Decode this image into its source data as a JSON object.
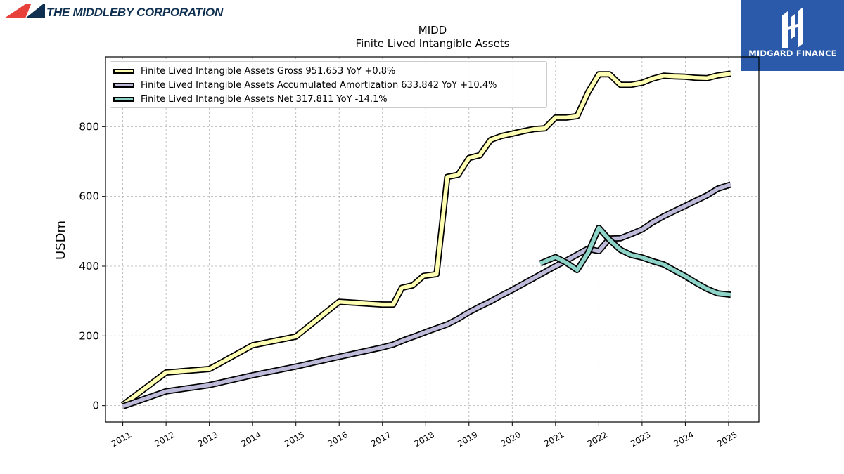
{
  "header": {
    "company_name": "THE MIDDLEBY CORPORATION",
    "brand_name": "MIDGARD FINANCE"
  },
  "colors": {
    "gross": "#ffffb3",
    "amortization": "#bebada",
    "net": "#8dd3c7",
    "outline": "#000000",
    "grid": "#b0b0b0",
    "brand_box": "#2a5aa9",
    "logo_red": "#e8403a",
    "logo_navy": "#0e2f4f"
  },
  "chart_data": {
    "type": "line",
    "title": "MIDD",
    "subtitle": "Finite Lived Intangible Assets",
    "ylabel": "USDm",
    "xlabel": "",
    "xlim": [
      2010.6,
      2025.7
    ],
    "ylim": [
      -47,
      1000
    ],
    "yticks": [
      0,
      200,
      400,
      600,
      800
    ],
    "xticks": [
      "2011",
      "2012",
      "2013",
      "2014",
      "2015",
      "2016",
      "2017",
      "2018",
      "2019",
      "2020",
      "2021",
      "2022",
      "2023",
      "2024",
      "2025"
    ],
    "grid": true,
    "legend_position": "top-left",
    "series": [
      {
        "name": "Finite Lived Intangible Assets Gross",
        "value_label": "951.653",
        "yoy_label": "YoY +0.8%",
        "color_key": "gross",
        "points": [
          [
            2011.0,
            2
          ],
          [
            2012.0,
            95
          ],
          [
            2013.0,
            105
          ],
          [
            2014.0,
            173
          ],
          [
            2015.0,
            198
          ],
          [
            2016.0,
            298
          ],
          [
            2017.0,
            290
          ],
          [
            2017.25,
            290
          ],
          [
            2017.45,
            338
          ],
          [
            2017.7,
            345
          ],
          [
            2017.95,
            372
          ],
          [
            2018.25,
            377
          ],
          [
            2018.5,
            656
          ],
          [
            2018.75,
            662
          ],
          [
            2019.0,
            710
          ],
          [
            2019.25,
            718
          ],
          [
            2019.5,
            762
          ],
          [
            2019.75,
            773
          ],
          [
            2020.0,
            780
          ],
          [
            2020.25,
            787
          ],
          [
            2020.5,
            793
          ],
          [
            2020.75,
            795
          ],
          [
            2021.0,
            826
          ],
          [
            2021.25,
            826
          ],
          [
            2021.5,
            830
          ],
          [
            2021.75,
            898
          ],
          [
            2022.0,
            950
          ],
          [
            2022.25,
            950
          ],
          [
            2022.5,
            920
          ],
          [
            2022.75,
            920
          ],
          [
            2023.0,
            926
          ],
          [
            2023.25,
            938
          ],
          [
            2023.5,
            946
          ],
          [
            2023.75,
            944
          ],
          [
            2024.0,
            943
          ],
          [
            2024.25,
            940
          ],
          [
            2024.5,
            939
          ],
          [
            2024.75,
            947
          ],
          [
            2025.05,
            952
          ]
        ]
      },
      {
        "name": "Finite Lived Intangible Assets Accumulated Amortization",
        "value_label": "633.842",
        "yoy_label": "YoY +10.4%",
        "color_key": "amortization",
        "points": [
          [
            2011.0,
            -2
          ],
          [
            2012.0,
            41
          ],
          [
            2013.0,
            59
          ],
          [
            2014.0,
            87
          ],
          [
            2015.0,
            112
          ],
          [
            2016.0,
            140
          ],
          [
            2017.0,
            167
          ],
          [
            2017.25,
            175
          ],
          [
            2017.5,
            188
          ],
          [
            2017.75,
            199
          ],
          [
            2018.0,
            211
          ],
          [
            2018.25,
            222
          ],
          [
            2018.5,
            233
          ],
          [
            2018.75,
            249
          ],
          [
            2019.0,
            268
          ],
          [
            2019.25,
            284
          ],
          [
            2019.5,
            299
          ],
          [
            2019.75,
            316
          ],
          [
            2020.0,
            332
          ],
          [
            2020.25,
            349
          ],
          [
            2020.5,
            366
          ],
          [
            2020.75,
            383
          ],
          [
            2021.0,
            400
          ],
          [
            2021.25,
            416
          ],
          [
            2021.5,
            433
          ],
          [
            2021.75,
            450
          ],
          [
            2022.0,
            443
          ],
          [
            2022.25,
            479
          ],
          [
            2022.5,
            480
          ],
          [
            2022.75,
            492
          ],
          [
            2023.0,
            505
          ],
          [
            2023.25,
            526
          ],
          [
            2023.5,
            543
          ],
          [
            2023.75,
            558
          ],
          [
            2024.0,
            573
          ],
          [
            2024.25,
            588
          ],
          [
            2024.5,
            603
          ],
          [
            2024.75,
            622
          ],
          [
            2025.05,
            634
          ]
        ]
      },
      {
        "name": "Finite Lived Intangible Assets Net",
        "value_label": "317.811",
        "yoy_label": "YoY -14.1%",
        "color_key": "net",
        "points": [
          [
            2020.65,
            408
          ],
          [
            2021.0,
            426
          ],
          [
            2021.25,
            410
          ],
          [
            2021.5,
            389
          ],
          [
            2021.75,
            438
          ],
          [
            2022.0,
            510
          ],
          [
            2022.25,
            475
          ],
          [
            2022.5,
            447
          ],
          [
            2022.75,
            432
          ],
          [
            2023.0,
            425
          ],
          [
            2023.25,
            414
          ],
          [
            2023.5,
            405
          ],
          [
            2023.75,
            388
          ],
          [
            2024.0,
            371
          ],
          [
            2024.25,
            352
          ],
          [
            2024.5,
            335
          ],
          [
            2024.75,
            322
          ],
          [
            2025.05,
            318
          ]
        ]
      }
    ]
  }
}
